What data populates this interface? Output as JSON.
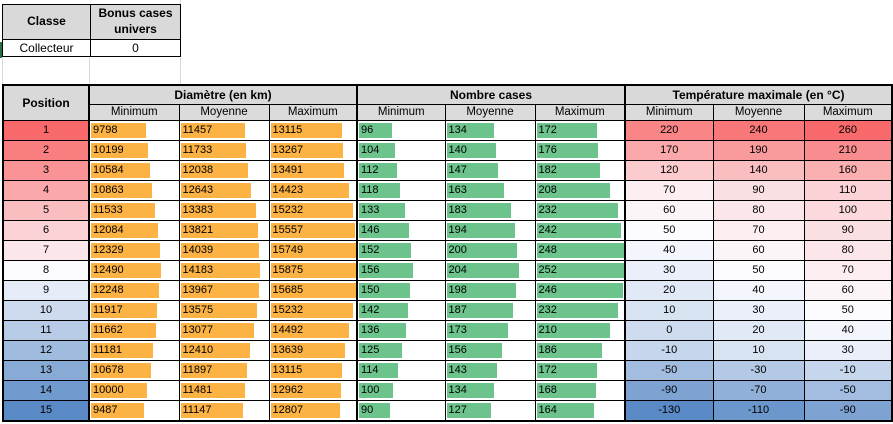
{
  "info": {
    "classe_label": "Classe",
    "classe_value": "Collecteur",
    "bonus_label": "Bonus cases univers",
    "bonus_value": "0"
  },
  "table": {
    "position_header": "Position",
    "sub_headers": [
      "Minimum",
      "Moyenne",
      "Maximum"
    ],
    "position_scale": {
      "min": 1,
      "mid": 8,
      "max": 15,
      "min_color": "#F8696B",
      "mid_color": "#FCFCFF",
      "max_color": "#5A8AC6"
    },
    "groups": [
      {
        "key": "diametre",
        "label": "Diamètre (en km)",
        "type": "bar",
        "bar_color": "#FCB344",
        "bar_max": 15875
      },
      {
        "key": "nombre_cases",
        "label": "Nombre cases",
        "type": "bar",
        "bar_color": "#6CC48C",
        "bar_max": 252
      },
      {
        "key": "temperature",
        "label": "Température maximale (en °C)",
        "type": "scale",
        "scale": {
          "min": -130,
          "mid": 50,
          "max": 260,
          "min_color": "#5A8AC6",
          "mid_color": "#FCFCFF",
          "max_color": "#F8696B"
        }
      }
    ],
    "rows": [
      {
        "position": 1,
        "diametre": [
          9798,
          11457,
          13115
        ],
        "nombre_cases": [
          96,
          134,
          172
        ],
        "temperature": [
          220,
          240,
          260
        ]
      },
      {
        "position": 2,
        "diametre": [
          10199,
          11733,
          13267
        ],
        "nombre_cases": [
          104,
          140,
          176
        ],
        "temperature": [
          170,
          190,
          210
        ]
      },
      {
        "position": 3,
        "diametre": [
          10584,
          12038,
          13491
        ],
        "nombre_cases": [
          112,
          147,
          182
        ],
        "temperature": [
          120,
          140,
          160
        ]
      },
      {
        "position": 4,
        "diametre": [
          10863,
          12643,
          14423
        ],
        "nombre_cases": [
          118,
          163,
          208
        ],
        "temperature": [
          70,
          90,
          110
        ]
      },
      {
        "position": 5,
        "diametre": [
          11533,
          13383,
          15232
        ],
        "nombre_cases": [
          133,
          183,
          232
        ],
        "temperature": [
          60,
          80,
          100
        ]
      },
      {
        "position": 6,
        "diametre": [
          12084,
          13821,
          15557
        ],
        "nombre_cases": [
          146,
          194,
          242
        ],
        "temperature": [
          50,
          70,
          90
        ]
      },
      {
        "position": 7,
        "diametre": [
          12329,
          14039,
          15749
        ],
        "nombre_cases": [
          152,
          200,
          248
        ],
        "temperature": [
          40,
          60,
          80
        ]
      },
      {
        "position": 8,
        "diametre": [
          12490,
          14183,
          15875
        ],
        "nombre_cases": [
          156,
          204,
          252
        ],
        "temperature": [
          30,
          50,
          70
        ]
      },
      {
        "position": 9,
        "diametre": [
          12248,
          13967,
          15685
        ],
        "nombre_cases": [
          150,
          198,
          246
        ],
        "temperature": [
          20,
          40,
          60
        ]
      },
      {
        "position": 10,
        "diametre": [
          11917,
          13575,
          15232
        ],
        "nombre_cases": [
          142,
          187,
          232
        ],
        "temperature": [
          10,
          30,
          50
        ]
      },
      {
        "position": 11,
        "diametre": [
          11662,
          13077,
          14492
        ],
        "nombre_cases": [
          136,
          173,
          210
        ],
        "temperature": [
          0,
          20,
          40
        ]
      },
      {
        "position": 12,
        "diametre": [
          11181,
          12410,
          13639
        ],
        "nombre_cases": [
          125,
          156,
          186
        ],
        "temperature": [
          -10,
          10,
          30
        ]
      },
      {
        "position": 13,
        "diametre": [
          10678,
          11897,
          13115
        ],
        "nombre_cases": [
          114,
          143,
          172
        ],
        "temperature": [
          -50,
          -30,
          -10
        ]
      },
      {
        "position": 14,
        "diametre": [
          10000,
          11481,
          12962
        ],
        "nombre_cases": [
          100,
          134,
          168
        ],
        "temperature": [
          -90,
          -70,
          -50
        ]
      },
      {
        "position": 15,
        "diametre": [
          9487,
          11147,
          12807
        ],
        "nombre_cases": [
          90,
          127,
          164
        ],
        "temperature": [
          -130,
          -110,
          -90
        ]
      }
    ]
  },
  "colors": {
    "header_bg": "#D9D9D9",
    "orange_bar": "#FCB344",
    "green_bar": "#6CC48C",
    "scale_red": "#F8696B",
    "scale_white": "#FCFCFF",
    "scale_blue": "#5A8AC6",
    "sheet_green": "#217346"
  }
}
